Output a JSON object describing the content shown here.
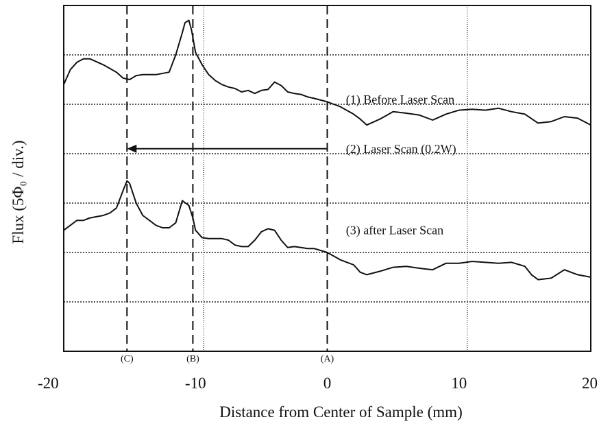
{
  "chart_data": {
    "type": "line",
    "xlabel": "Distance from Center of Sample (mm)",
    "ylabel": "Flux  (5Φ₀ / div.)",
    "xlim": [
      -20,
      20
    ],
    "y_divisions": 6,
    "x_ticks": [
      "-20",
      "-10",
      "0",
      "10",
      "20"
    ],
    "x_tick_values": [
      -20,
      -10,
      0,
      10,
      20
    ],
    "grid": true,
    "markers": [
      {
        "label": "(C)",
        "x": -15.2
      },
      {
        "label": "(B)",
        "x": -10.2
      },
      {
        "label": "(A)",
        "x": 0.0
      }
    ],
    "arrow": {
      "from_x": 0.0,
      "to_x": -15.2,
      "y_div": 3.6
    },
    "annotations": [
      {
        "text": "(1) Before Laser Scan",
        "x": 1.0,
        "y_div": 4.6
      },
      {
        "text": "(2) Laser Scan (0.2W)",
        "x": 1.0,
        "y_div": 3.6
      },
      {
        "text": "(3) after Laser Scan",
        "x": 1.0,
        "y_div": 1.95
      }
    ],
    "series": [
      {
        "x": [
          -20,
          -19.5,
          -19,
          -18.5,
          -18,
          -17,
          -16,
          -15.5,
          -15,
          -14.5,
          -14,
          -13,
          -12,
          -11.5,
          -11,
          -10.8,
          -10.5,
          -10.3,
          -10,
          -9.5,
          -9,
          -8.5,
          -8,
          -7.5,
          -7,
          -6.5,
          -6,
          -5.5,
          -5,
          -4.5,
          -4,
          -3.5,
          -3,
          -2.5,
          -2,
          -1.5,
          -1,
          0,
          0.5,
          1,
          2,
          2.5,
          3,
          4,
          5,
          6,
          7,
          8,
          9,
          10,
          11,
          12,
          13,
          14,
          15,
          16,
          17,
          18,
          19,
          20
        ],
        "y": [
          4.9,
          5.2,
          5.35,
          5.42,
          5.42,
          5.3,
          5.15,
          5.03,
          5.0,
          5.08,
          5.1,
          5.1,
          5.15,
          5.5,
          5.95,
          6.15,
          6.2,
          6.0,
          5.55,
          5.3,
          5.1,
          4.98,
          4.9,
          4.85,
          4.82,
          4.75,
          4.78,
          4.72,
          4.78,
          4.8,
          4.95,
          4.88,
          4.75,
          4.72,
          4.7,
          4.65,
          4.62,
          4.55,
          4.5,
          4.45,
          4.3,
          4.2,
          4.08,
          4.2,
          4.35,
          4.32,
          4.28,
          4.18,
          4.3,
          4.38,
          4.4,
          4.38,
          4.42,
          4.35,
          4.3,
          4.12,
          4.15,
          4.25,
          4.22,
          4.08
        ]
      },
      {
        "x": [
          -20,
          -19.5,
          -19,
          -18.5,
          -18,
          -17,
          -16.5,
          -16,
          -15.5,
          -15.2,
          -15,
          -14.5,
          -14,
          -13.5,
          -13,
          -12.5,
          -12,
          -11.5,
          -11,
          -10.5,
          -10.2,
          -10,
          -9.5,
          -9,
          -8.5,
          -8,
          -7.5,
          -7,
          -6.5,
          -6,
          -5.5,
          -5,
          -4.5,
          -4,
          -3.5,
          -3,
          -2.5,
          -2,
          -1.5,
          -1,
          0,
          1,
          2,
          2.5,
          3,
          4,
          5,
          6,
          7,
          8,
          9,
          10,
          11,
          12,
          13,
          14,
          15,
          15.5,
          16,
          17,
          18,
          19,
          20
        ],
        "y": [
          1.95,
          2.05,
          2.15,
          2.15,
          2.2,
          2.25,
          2.3,
          2.4,
          2.75,
          2.95,
          2.9,
          2.5,
          2.25,
          2.15,
          2.05,
          2.0,
          2.0,
          2.1,
          2.55,
          2.45,
          2.2,
          1.95,
          1.8,
          1.78,
          1.78,
          1.78,
          1.75,
          1.65,
          1.62,
          1.62,
          1.75,
          1.92,
          1.98,
          1.95,
          1.75,
          1.6,
          1.62,
          1.6,
          1.58,
          1.58,
          1.5,
          1.35,
          1.25,
          1.1,
          1.05,
          1.12,
          1.2,
          1.22,
          1.18,
          1.15,
          1.28,
          1.28,
          1.32,
          1.3,
          1.28,
          1.3,
          1.22,
          1.05,
          0.95,
          0.98,
          1.15,
          1.05,
          1.0
        ]
      }
    ]
  }
}
